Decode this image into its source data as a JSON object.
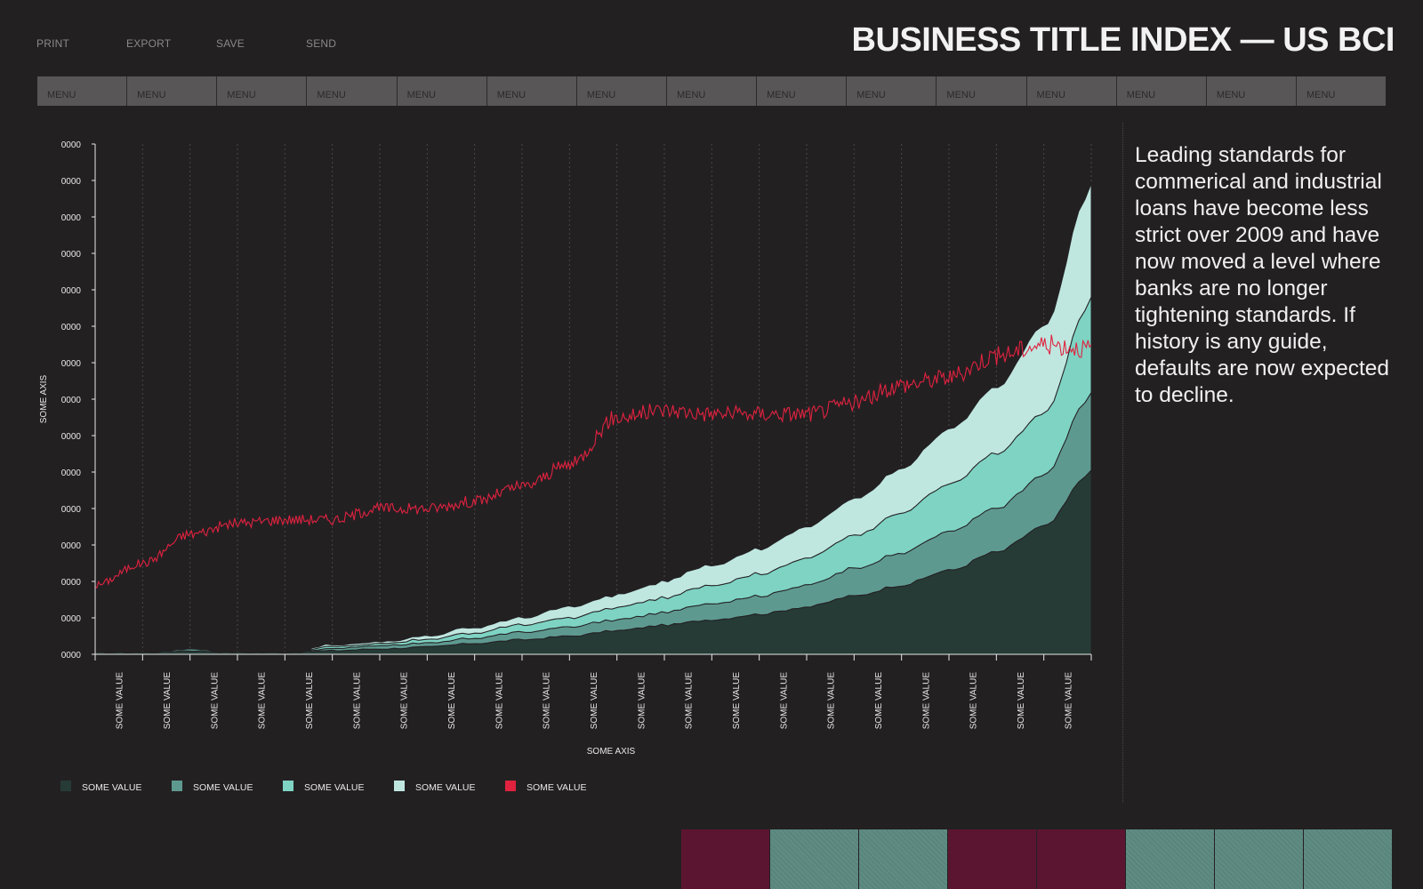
{
  "toolbar": {
    "print": "PRINT",
    "export": "EXPORT",
    "save": "SAVE",
    "send": "SEND"
  },
  "page_title": "BUSINESS TITLE INDEX — US BCI",
  "menu": [
    "MENU",
    "MENU",
    "MENU",
    "MENU",
    "MENU",
    "MENU",
    "MENU",
    "MENU",
    "MENU",
    "MENU",
    "MENU",
    "MENU",
    "MENU",
    "MENU",
    "MENU"
  ],
  "description": "Leading standards for commerical and industrial loans have become less strict over 2009 and have now moved a level where banks are no longer tightening standards. If history is any guide, defaults are now expected to decline.",
  "colors": {
    "background": "#232022",
    "series_dark": "#263b36",
    "series_mid": "#5e9990",
    "series_light": "#7ed3c3",
    "series_pale": "#bfe7e0",
    "line_red": "#e0223f",
    "tile_maroon": "#5c1530",
    "tile_teal": "#5e8b82"
  },
  "bottom_tiles": [
    "maroon",
    "teal",
    "teal",
    "maroon",
    "maroon",
    "teal",
    "teal",
    "teal"
  ],
  "chart_data": {
    "type": "area",
    "stacked": true,
    "xlabel": "SOME AXIS",
    "ylabel": "SOME AXIS",
    "x_tick_labels": [
      "SOME VALUE",
      "SOME VALUE",
      "SOME VALUE",
      "SOME VALUE",
      "SOME VALUE",
      "SOME VALUE",
      "SOME VALUE",
      "SOME VALUE",
      "SOME VALUE",
      "SOME VALUE",
      "SOME VALUE",
      "SOME VALUE",
      "SOME VALUE",
      "SOME VALUE",
      "SOME VALUE",
      "SOME VALUE",
      "SOME VALUE",
      "SOME VALUE",
      "SOME VALUE",
      "SOME VALUE",
      "SOME VALUE"
    ],
    "y_tick_labels": [
      "0000",
      "0000",
      "0000",
      "0000",
      "0000",
      "0000",
      "0000",
      "0000",
      "0000",
      "0000",
      "0000",
      "0000",
      "0000",
      "0000",
      "0000"
    ],
    "ylim": [
      0,
      14
    ],
    "grid": "vertical-dashed",
    "legend_position": "bottom-left",
    "x": [
      0,
      1,
      2,
      3,
      4,
      5,
      6,
      7,
      8,
      9,
      10,
      11,
      12,
      13,
      14,
      15,
      16,
      17,
      18,
      19,
      20,
      21
    ],
    "series": [
      {
        "name": "SOME VALUE",
        "color": "#263b36",
        "kind": "area",
        "values": [
          0.05,
          0.05,
          0.1,
          0.05,
          0.05,
          0.1,
          0.15,
          0.2,
          0.3,
          0.4,
          0.5,
          0.65,
          0.8,
          0.95,
          1.1,
          1.3,
          1.6,
          1.9,
          2.3,
          2.8,
          3.5,
          5.0
        ]
      },
      {
        "name": "SOME VALUE",
        "color": "#5e9990",
        "kind": "area",
        "values": [
          0.0,
          0.0,
          0.05,
          0.0,
          0.0,
          0.05,
          0.1,
          0.1,
          0.15,
          0.2,
          0.25,
          0.3,
          0.35,
          0.45,
          0.5,
          0.6,
          0.75,
          0.9,
          1.05,
          1.2,
          1.4,
          2.1
        ]
      },
      {
        "name": "SOME VALUE",
        "color": "#7ed3c3",
        "kind": "area",
        "values": [
          0.0,
          0.0,
          0.0,
          0.0,
          0.0,
          0.05,
          0.05,
          0.1,
          0.15,
          0.2,
          0.25,
          0.35,
          0.4,
          0.5,
          0.6,
          0.75,
          0.9,
          1.1,
          1.3,
          1.5,
          1.7,
          2.6
        ]
      },
      {
        "name": "SOME VALUE",
        "color": "#bfe7e0",
        "kind": "area",
        "values": [
          0.0,
          0.0,
          0.0,
          0.0,
          0.0,
          0.05,
          0.05,
          0.1,
          0.15,
          0.2,
          0.3,
          0.35,
          0.45,
          0.55,
          0.7,
          0.85,
          1.0,
          1.2,
          1.5,
          1.8,
          2.4,
          3.1
        ]
      },
      {
        "name": "SOME VALUE",
        "color": "#e0223f",
        "kind": "line",
        "values": [
          1.9,
          2.5,
          3.3,
          3.6,
          3.7,
          3.7,
          4.0,
          4.0,
          4.2,
          4.6,
          5.2,
          6.5,
          6.7,
          6.6,
          6.6,
          6.6,
          6.9,
          7.4,
          7.6,
          8.2,
          8.5,
          8.4
        ]
      }
    ]
  }
}
